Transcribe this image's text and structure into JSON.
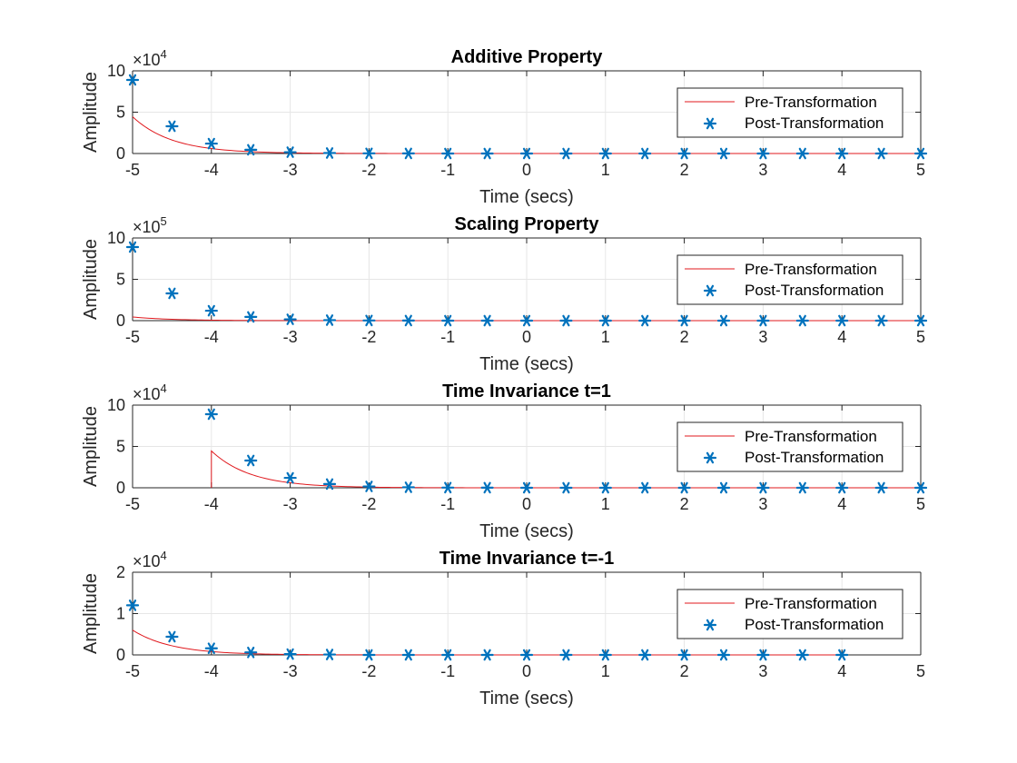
{
  "colors": {
    "pre": "#e0191e",
    "post": "#0072bd",
    "grid": "#e6e6e6",
    "axis": "#262626"
  },
  "chart_data": [
    {
      "type": "line",
      "title": "Additive Property",
      "xlabel": "Time (secs)",
      "ylabel": "Amplitude",
      "exponent_base": "×10",
      "exponent_power": "4",
      "xlim": [
        -5,
        5
      ],
      "ylim": [
        0,
        10
      ],
      "xticks": [
        -5,
        -4,
        -3,
        -2,
        -1,
        0,
        1,
        2,
        3,
        4,
        5
      ],
      "yticks": [
        0,
        5,
        10
      ],
      "grid": true,
      "legend_position": "right",
      "series": [
        {
          "name": "Pre-Transformation",
          "style": "line",
          "curve": {
            "t_start": -5,
            "t_end": 5,
            "amplitude": 4.45,
            "decay": 2.0
          }
        },
        {
          "name": "Post-Transformation",
          "style": "marker",
          "x": [
            -5,
            -4.5,
            -4,
            -3.5,
            -3,
            -2.5,
            -2,
            -1.5,
            -1,
            -0.5,
            0,
            0.5,
            1,
            1.5,
            2,
            2.5,
            3,
            3.5,
            4,
            4.5,
            5
          ],
          "y": [
            8.9,
            3.3,
            1.2,
            0.45,
            0.16,
            0.06,
            0.02,
            0.01,
            0,
            0,
            0,
            0,
            0,
            0,
            0,
            0,
            0,
            0,
            0,
            0,
            0
          ]
        }
      ]
    },
    {
      "type": "line",
      "title": "Scaling Property",
      "xlabel": "Time (secs)",
      "ylabel": "Amplitude",
      "exponent_base": "×10",
      "exponent_power": "5",
      "xlim": [
        -5,
        5
      ],
      "ylim": [
        0,
        10
      ],
      "xticks": [
        -5,
        -4,
        -3,
        -2,
        -1,
        0,
        1,
        2,
        3,
        4,
        5
      ],
      "yticks": [
        0,
        5,
        10
      ],
      "grid": true,
      "legend_position": "right",
      "series": [
        {
          "name": "Pre-Transformation",
          "style": "line",
          "curve": {
            "t_start": -5,
            "t_end": 5,
            "amplitude": 0.445,
            "decay": 2.0
          }
        },
        {
          "name": "Post-Transformation",
          "style": "marker",
          "x": [
            -5,
            -4.5,
            -4,
            -3.5,
            -3,
            -2.5,
            -2,
            -1.5,
            -1,
            -0.5,
            0,
            0.5,
            1,
            1.5,
            2,
            2.5,
            3,
            3.5,
            4,
            4.5,
            5
          ],
          "y": [
            8.9,
            3.3,
            1.2,
            0.45,
            0.16,
            0.06,
            0.02,
            0.01,
            0,
            0,
            0,
            0,
            0,
            0,
            0,
            0,
            0,
            0,
            0,
            0,
            0
          ]
        }
      ]
    },
    {
      "type": "line",
      "title": "Time Invariance t=1",
      "xlabel": "Time (secs)",
      "ylabel": "Amplitude",
      "exponent_base": "×10",
      "exponent_power": "4",
      "xlim": [
        -5,
        5
      ],
      "ylim": [
        0,
        10
      ],
      "xticks": [
        -5,
        -4,
        -3,
        -2,
        -1,
        0,
        1,
        2,
        3,
        4,
        5
      ],
      "yticks": [
        0,
        5,
        10
      ],
      "grid": true,
      "legend_position": "right",
      "series": [
        {
          "name": "Pre-Transformation",
          "style": "line",
          "curve": {
            "t_start": -4,
            "t_end": 5,
            "amplitude": 4.45,
            "decay": 2.0,
            "vertical_start": true
          }
        },
        {
          "name": "Post-Transformation",
          "style": "marker",
          "x": [
            -4,
            -3.5,
            -3,
            -2.5,
            -2,
            -1.5,
            -1,
            -0.5,
            0,
            0.5,
            1,
            1.5,
            2,
            2.5,
            3,
            3.5,
            4,
            4.5,
            5
          ],
          "y": [
            8.9,
            3.3,
            1.2,
            0.45,
            0.16,
            0.06,
            0.02,
            0.01,
            0,
            0,
            0,
            0,
            0,
            0,
            0,
            0,
            0,
            0,
            0
          ]
        }
      ]
    },
    {
      "type": "line",
      "title": "Time Invariance t=-1",
      "xlabel": "Time (secs)",
      "ylabel": "Amplitude",
      "exponent_base": "×10",
      "exponent_power": "4",
      "xlim": [
        -5,
        5
      ],
      "ylim": [
        0,
        2
      ],
      "xticks": [
        -5,
        -4,
        -3,
        -2,
        -1,
        0,
        1,
        2,
        3,
        4,
        5
      ],
      "yticks": [
        0,
        1,
        2
      ],
      "grid": true,
      "legend_position": "right",
      "series": [
        {
          "name": "Pre-Transformation",
          "style": "line",
          "curve": {
            "t_start": -5,
            "t_end": 4,
            "amplitude": 0.6,
            "decay": 2.0
          }
        },
        {
          "name": "Post-Transformation",
          "style": "marker",
          "x": [
            -5,
            -4.5,
            -4,
            -3.5,
            -3,
            -2.5,
            -2,
            -1.5,
            -1,
            -0.5,
            0,
            0.5,
            1,
            1.5,
            2,
            2.5,
            3,
            3.5,
            4
          ],
          "y": [
            1.2,
            0.44,
            0.16,
            0.06,
            0.02,
            0.01,
            0,
            0,
            0,
            0,
            0,
            0,
            0,
            0,
            0,
            0,
            0,
            0,
            0
          ]
        }
      ]
    }
  ]
}
